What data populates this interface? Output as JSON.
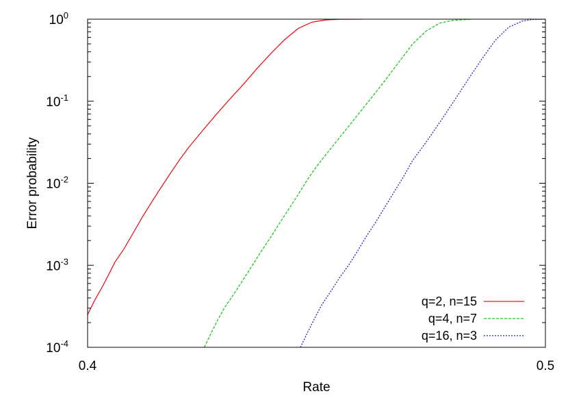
{
  "chart_data": {
    "type": "line",
    "title": "",
    "xlabel": "Rate",
    "ylabel": "Error probability",
    "xlim": [
      0.4,
      0.5
    ],
    "ylim": [
      0.0001,
      1
    ],
    "yscale": "log",
    "grid": false,
    "legend_position": "bottom-right",
    "x_ticks": [
      {
        "value": 0.4,
        "label": "0.4"
      },
      {
        "value": 0.5,
        "label": "0.5"
      }
    ],
    "y_ticks": [
      {
        "value": 0.0001,
        "base": "10",
        "exp": "-4"
      },
      {
        "value": 0.001,
        "base": "10",
        "exp": "-3"
      },
      {
        "value": 0.01,
        "base": "10",
        "exp": "-2"
      },
      {
        "value": 0.1,
        "base": "10",
        "exp": "-1"
      },
      {
        "value": 1,
        "base": "10",
        "exp": "0"
      }
    ],
    "series": [
      {
        "name": "q=2, n=15",
        "color": "#e8141c",
        "dash": "solid",
        "x": [
          0.4,
          0.4015,
          0.403,
          0.4045,
          0.406,
          0.408,
          0.41,
          0.412,
          0.414,
          0.416,
          0.418,
          0.42,
          0.422,
          0.425,
          0.428,
          0.431,
          0.434,
          0.437,
          0.44,
          0.443,
          0.446,
          0.449,
          0.452,
          0.455,
          0.46
        ],
        "y": [
          0.00025,
          0.00037,
          0.00052,
          0.00075,
          0.0011,
          0.0016,
          0.0025,
          0.0039,
          0.0059,
          0.0088,
          0.013,
          0.019,
          0.027,
          0.043,
          0.068,
          0.105,
          0.16,
          0.25,
          0.38,
          0.56,
          0.77,
          0.92,
          0.98,
          0.997,
          1
        ]
      },
      {
        "name": "q=4, n=7",
        "color": "#1ec81e",
        "dash": "dashed",
        "x": [
          0.4255,
          0.427,
          0.4285,
          0.43,
          0.432,
          0.434,
          0.436,
          0.438,
          0.44,
          0.442,
          0.444,
          0.446,
          0.448,
          0.45,
          0.453,
          0.456,
          0.459,
          0.462,
          0.465,
          0.468,
          0.471,
          0.474,
          0.477,
          0.48,
          0.484
        ],
        "y": [
          0.0001,
          0.00015,
          0.00022,
          0.00031,
          0.00045,
          0.00067,
          0.001,
          0.0015,
          0.0022,
          0.0033,
          0.0049,
          0.0073,
          0.011,
          0.016,
          0.026,
          0.042,
          0.068,
          0.11,
          0.18,
          0.3,
          0.5,
          0.72,
          0.9,
          0.97,
          1
        ]
      },
      {
        "name": "q=16, n=3",
        "color": "#1e1ec8",
        "dash": "dotted",
        "x": [
          0.4465,
          0.448,
          0.4495,
          0.451,
          0.453,
          0.455,
          0.457,
          0.459,
          0.461,
          0.463,
          0.465,
          0.467,
          0.469,
          0.471,
          0.474,
          0.477,
          0.48,
          0.483,
          0.486,
          0.489,
          0.492,
          0.495,
          0.497,
          0.5
        ],
        "y": [
          0.0001,
          0.00015,
          0.00022,
          0.00032,
          0.00047,
          0.0007,
          0.001,
          0.0015,
          0.0023,
          0.0034,
          0.0052,
          0.0079,
          0.012,
          0.019,
          0.032,
          0.056,
          0.1,
          0.18,
          0.32,
          0.55,
          0.8,
          0.95,
          0.99,
          1
        ]
      }
    ]
  }
}
